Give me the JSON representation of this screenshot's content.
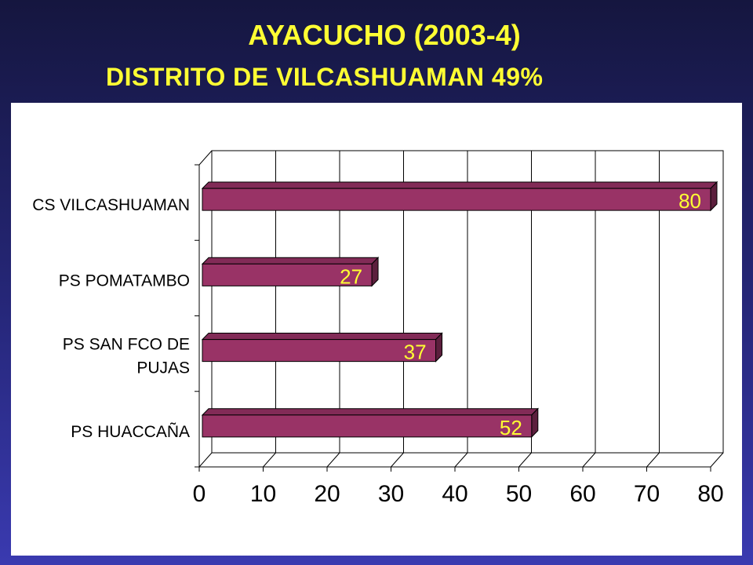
{
  "title": "AYACUCHO (2003-4)",
  "subtitle": "DISTRITO DE VILCASHUAMAN 49%",
  "chart_data": {
    "type": "bar",
    "orientation": "horizontal",
    "style": "3d",
    "categories": [
      "CS VILCASHUAMAN",
      "PS POMATAMBO",
      "PS SAN FCO DE PUJAS",
      "PS HUACCAÑA"
    ],
    "category_label_lines": [
      [
        "CS VILCASHUAMAN"
      ],
      [
        "PS POMATAMBO"
      ],
      [
        "PS SAN FCO DE",
        "PUJAS"
      ],
      [
        "PS HUACCAÑA"
      ]
    ],
    "values": [
      80,
      27,
      37,
      52
    ],
    "data_labels": [
      "80",
      "27",
      "37",
      "52"
    ],
    "xlim": [
      0,
      80
    ],
    "x_ticks": [
      "0",
      "10",
      "20",
      "30",
      "40",
      "50",
      "60",
      "70",
      "80"
    ],
    "xlabel": "",
    "ylabel": "",
    "grid": true,
    "legend": "none",
    "bar_color": "#993366",
    "label_color": "#ffff33"
  }
}
